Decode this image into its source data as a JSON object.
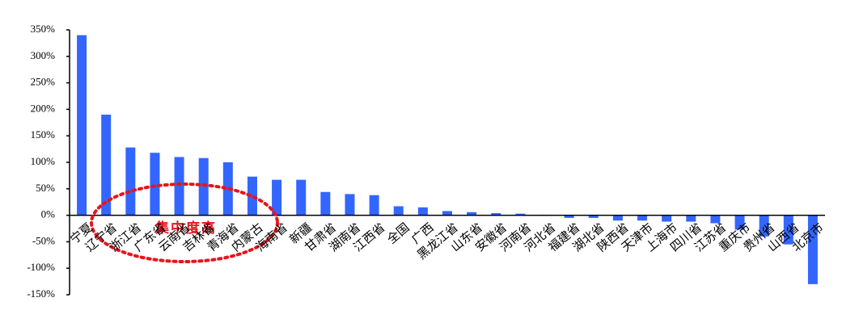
{
  "chart_data": {
    "type": "bar",
    "categories": [
      "宁夏",
      "辽宁省",
      "浙江省",
      "广东省",
      "云南省",
      "吉林省",
      "青海省",
      "内蒙古",
      "海南省",
      "新疆",
      "甘肃省",
      "湖南省",
      "江西省",
      "全国",
      "广西",
      "黑龙江省",
      "山东省",
      "安徽省",
      "河南省",
      "河北省",
      "福建省",
      "湖北省",
      "陕西省",
      "天津市",
      "上海市",
      "四川省",
      "江苏省",
      "重庆市",
      "贵州省",
      "山西省",
      "北京市"
    ],
    "values": [
      340,
      190,
      128,
      118,
      110,
      108,
      100,
      73,
      67,
      67,
      44,
      40,
      38,
      17,
      15,
      8,
      6,
      4,
      3,
      1,
      -5,
      -5,
      -10,
      -10,
      -12,
      -12,
      -15,
      -27,
      -40,
      -55,
      -130
    ],
    "color": "#3366ff",
    "ylim": [
      -150,
      350
    ],
    "yticks": [
      {
        "value": -150,
        "label": "-150%"
      },
      {
        "value": -100,
        "label": "-100%"
      },
      {
        "value": -50,
        "label": "-50%"
      },
      {
        "value": 0,
        "label": "0%"
      },
      {
        "value": 50,
        "label": "50%"
      },
      {
        "value": 100,
        "label": "100%"
      },
      {
        "value": 150,
        "label": "150%"
      },
      {
        "value": 200,
        "label": "200%"
      },
      {
        "value": 250,
        "label": "250%"
      },
      {
        "value": 300,
        "label": "300%"
      },
      {
        "value": 350,
        "label": "350%"
      }
    ],
    "grid": false,
    "annotation": "集中度高"
  }
}
